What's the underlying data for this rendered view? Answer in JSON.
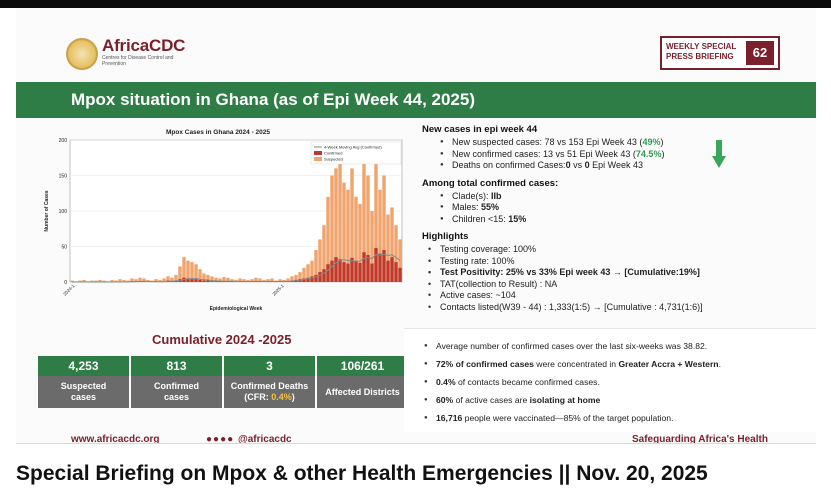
{
  "slide": {
    "logo_name": "AfricaCDC",
    "logo_sub": "Centres for Disease Control and Prevention",
    "badge_text_1": "WEEKLY SPECIAL",
    "badge_text_2": "PRESS BRIEFING",
    "badge_number": "62",
    "title": "Mpox situation in Ghana (as of Epi Week 44, 2025)",
    "chart_caption_title": "Cumulative 2024 -2025",
    "stats": [
      {
        "value": "4,253",
        "label_1": "Suspected",
        "label_2": "cases"
      },
      {
        "value": "813",
        "label_1": "Confirmed",
        "label_2": "cases"
      },
      {
        "value": "3",
        "label_1": "Confirmed Deaths",
        "label_2_pre": "(CFR: ",
        "label_2_hl": "0.4%",
        "label_2_post": ")"
      },
      {
        "value": "106/261",
        "label_1": "Affected Districts",
        "label_2": ""
      }
    ],
    "new_cases": {
      "heading": "New cases in epi week 44",
      "items": [
        {
          "pre": "New suspected cases: 78  vs 153 Epi Week 43 (",
          "hl": "49%",
          "post": ")"
        },
        {
          "pre": "New confirmed cases: 13 vs 51 Epi Week 43 (",
          "hl": "74.5%",
          "post": ")"
        },
        {
          "pre": "Deaths on confirmed Cases:",
          "b1": "0",
          "mid": " vs ",
          "b2": "0",
          "post": " Epi Week 43"
        }
      ]
    },
    "total_confirmed": {
      "heading": "Among total confirmed cases:",
      "items": [
        {
          "pre": "Clade(s): ",
          "b": "IIb"
        },
        {
          "pre": "Males: ",
          "b": "55%"
        },
        {
          "pre": "Children <15: ",
          "b": "15%"
        }
      ]
    },
    "highlights": {
      "heading": "Highlights",
      "items": [
        "Testing coverage: 100%",
        "Testing rate: 100%",
        "Test Positivity: 25% vs 33% Epi week 43  →    [Cumulative:19%]",
        "TAT(collection to Result) : NA",
        "Active cases: ~104",
        "Contacts listed(W39 - 44) : 1,333(1:5)   →   [Cumulative : 4,731(1:6)]"
      ]
    },
    "box_items": [
      {
        "pre": "Average number of confirmed cases over the last six-weeks was 38.82.",
        "b": "",
        "post": ""
      },
      {
        "pre": "",
        "b": "72% of confirmed cases",
        "mid": " were concentrated in ",
        "b2": "Greater Accra + Western",
        "post": "."
      },
      {
        "pre": "",
        "b": "0.4%",
        "post": " of contacts became confirmed cases."
      },
      {
        "pre": "",
        "b": "60%",
        "post": " of active cases are ",
        "b2": "isolating at home"
      },
      {
        "pre": "",
        "b": "16,716",
        "post": " people were vaccinated—85% of the target population."
      }
    ],
    "footer_url": "www.africacdc.org",
    "footer_social": "@africacdc",
    "footer_tag": "Safeguarding Africa's Health"
  },
  "caption": "Special Briefing on Mpox & other Health Emergencies || Nov. 20, 2025",
  "colors": {
    "brand_green": "#2e7d46",
    "brand_maroon": "#7a1f2b",
    "suspected": "#f0a46c",
    "confirmed": "#c0392b",
    "moving_avg": "#7f8c8d"
  },
  "chart_data": {
    "type": "bar",
    "title": "Mpox Cases in Ghana 2024 - 2025",
    "xlabel": "Epidemiological Week",
    "ylabel": "Number of Cases",
    "ylim": [
      0,
      200
    ],
    "yticks": [
      0,
      50,
      100,
      150,
      200
    ],
    "legend": [
      "4-Week Moving Avg (Confirmed)",
      "Confirmed",
      "Suspected"
    ],
    "legend_position": "top-right",
    "x_start_label": "2024-1",
    "x_mid_label": "2025-1",
    "suspected": [
      2,
      1,
      2,
      3,
      1,
      2,
      2,
      3,
      2,
      1,
      3,
      2,
      4,
      3,
      2,
      5,
      4,
      6,
      5,
      3,
      2,
      4,
      3,
      5,
      8,
      6,
      10,
      22,
      35,
      30,
      28,
      25,
      18,
      12,
      10,
      8,
      6,
      5,
      7,
      6,
      4,
      3,
      5,
      4,
      3,
      4,
      6,
      5,
      3,
      4,
      5,
      2,
      4,
      3,
      5,
      8,
      10,
      14,
      20,
      25,
      30,
      45,
      60,
      80,
      120,
      150,
      160,
      175,
      140,
      130,
      160,
      120,
      110,
      175,
      150,
      100,
      180,
      130,
      150,
      95,
      105,
      80,
      60
    ],
    "confirmed": [
      0,
      0,
      0,
      0,
      0,
      0,
      0,
      0,
      0,
      0,
      0,
      0,
      0,
      0,
      0,
      1,
      1,
      1,
      1,
      0,
      0,
      1,
      0,
      1,
      2,
      1,
      2,
      4,
      6,
      5,
      4,
      4,
      3,
      2,
      2,
      1,
      1,
      1,
      1,
      1,
      1,
      0,
      1,
      1,
      0,
      1,
      1,
      1,
      0,
      1,
      1,
      0,
      1,
      1,
      1,
      2,
      3,
      4,
      5,
      6,
      8,
      10,
      14,
      18,
      25,
      30,
      35,
      32,
      28,
      26,
      34,
      30,
      27,
      42,
      38,
      26,
      48,
      40,
      45,
      30,
      35,
      28,
      20
    ],
    "moving_avg": [
      0,
      0,
      0,
      0,
      0,
      0,
      0,
      0,
      0,
      0,
      0,
      0,
      0,
      0,
      0,
      0.3,
      0.5,
      0.8,
      1,
      0.8,
      0.5,
      0.5,
      0.3,
      0.5,
      1,
      1,
      1.5,
      2.3,
      3.5,
      4.3,
      4.8,
      4.8,
      4,
      3.3,
      2.8,
      2,
      1.5,
      1.3,
      1,
      1,
      1,
      0.8,
      0.8,
      0.8,
      0.5,
      0.8,
      0.8,
      0.8,
      0.8,
      0.8,
      0.8,
      0.5,
      0.8,
      0.8,
      0.8,
      1.3,
      1.8,
      2.5,
      3.5,
      4.5,
      5.8,
      7.3,
      9.5,
      12.5,
      16.8,
      21.8,
      27,
      30.5,
      31.3,
      30.3,
      30,
      29.5,
      29.3,
      33.3,
      34.3,
      33.3,
      38.5,
      38,
      39.3,
      37.3,
      38.3,
      34.5,
      30.5
    ]
  }
}
